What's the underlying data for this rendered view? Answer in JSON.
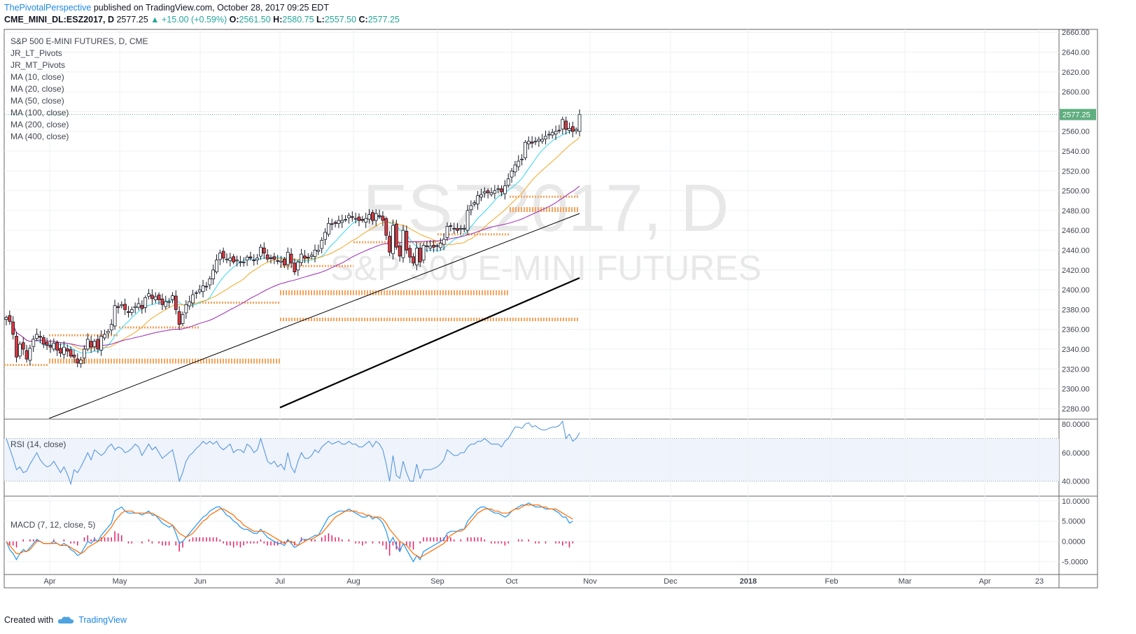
{
  "header": {
    "author": "ThePivotalPerspective",
    "published_text": "published on TradingView.com, October 28, 2017 09:25 EDT",
    "symbol_line": "CME_MINI_DL:ESZ2017, D",
    "last_price": "2577.25",
    "change": "+15.00 (+0.59%)",
    "open_label": "O:",
    "open": "2561.50",
    "high_label": "H:",
    "high": "2580.75",
    "low_label": "L:",
    "low": "2557.50",
    "close_label": "C:",
    "close": "2577.25"
  },
  "legend": {
    "title": "S&P 500 E-MINI FUTURES, D, CME",
    "items": [
      "JR_LT_Pivots",
      "JR_MT_Pivots",
      "MA (10, close)",
      "MA (20, close)",
      "MA (50, close)",
      "MA (100, close)",
      "MA (200, close)",
      "MA (400, close)"
    ]
  },
  "watermark": {
    "symbol": "ESZ2017, D",
    "name": "S&P 500 E-MINI FUTURES"
  },
  "rsi_legend": "RSI (14, close)",
  "macd_legend": "MACD (7, 12, close, 5)",
  "footer": {
    "created_with": "Created with",
    "brand": "TradingView"
  },
  "colors": {
    "up": "#ffffff",
    "down": "#e0383e",
    "wick": "#131722",
    "ma10": "#33d6f1",
    "ma20": "#f5a623",
    "ma50": "#9c27b0",
    "ma100": "#000000",
    "ma200": "#000000",
    "pivot": "#f7a35c",
    "rsi": "#4a90d9",
    "macd": "#2196f3",
    "signal": "#ff6d00",
    "hist": "#e91e63",
    "price_tag": "#5fae7f"
  },
  "chart_data": [
    {
      "type": "candlestick",
      "price_axis": [
        "2660.00",
        "2640.00",
        "2620.00",
        "2600.00",
        "2580.00",
        "2560.00",
        "2540.00",
        "2520.00",
        "2500.00",
        "2480.00",
        "2460.00",
        "2440.00",
        "2420.00",
        "2400.00",
        "2380.00",
        "2360.00",
        "2340.00",
        "2320.00",
        "2300.00",
        "2280.00"
      ],
      "ylim": [
        2270,
        2663
      ],
      "time_axis": [
        "Apr",
        "May",
        "Jun",
        "Jul",
        "Aug",
        "Sep",
        "Oct",
        "Nov",
        "Dec",
        "2018",
        "Feb",
        "Mar",
        "Apr",
        "23"
      ],
      "closes": [
        2372,
        2368,
        2355,
        2332,
        2345,
        2340,
        2330,
        2341,
        2350,
        2355,
        2352,
        2345,
        2344,
        2342,
        2346,
        2339,
        2336,
        2342,
        2338,
        2333,
        2332,
        2326,
        2329,
        2340,
        2350,
        2342,
        2348,
        2340,
        2353,
        2355,
        2358,
        2365,
        2384,
        2382,
        2385,
        2380,
        2377,
        2380,
        2383,
        2386,
        2381,
        2392,
        2396,
        2391,
        2393,
        2390,
        2385,
        2388,
        2388,
        2394,
        2380,
        2365,
        2375,
        2385,
        2388,
        2395,
        2397,
        2400,
        2404,
        2403,
        2411,
        2420,
        2430,
        2437,
        2432,
        2431,
        2432,
        2428,
        2430,
        2428,
        2428,
        2433,
        2432,
        2430,
        2432,
        2443,
        2437,
        2431,
        2432,
        2431,
        2429,
        2429,
        2425,
        2438,
        2427,
        2418,
        2428,
        2436,
        2432,
        2432,
        2435,
        2440,
        2440,
        2450,
        2458,
        2467,
        2466,
        2467,
        2470,
        2470,
        2471,
        2475,
        2473,
        2472,
        2470,
        2470,
        2472,
        2476,
        2470,
        2477,
        2474,
        2470,
        2455,
        2438,
        2465,
        2443,
        2434,
        2460,
        2440,
        2433,
        2427,
        2442,
        2428,
        2445,
        2444,
        2444,
        2443,
        2444,
        2447,
        2451,
        2464,
        2464,
        2462,
        2460,
        2462,
        2462,
        2480,
        2485,
        2488,
        2495,
        2496,
        2499,
        2498,
        2498,
        2500,
        2502,
        2499,
        2505,
        2512,
        2520,
        2526,
        2530,
        2532,
        2549,
        2550,
        2548,
        2550,
        2552,
        2552,
        2555,
        2557,
        2559,
        2560,
        2561,
        2572,
        2562,
        2563,
        2560,
        2562,
        2577
      ],
      "ma10_approx": [
        2375,
        2326
      ],
      "last_price_label": "2577.25"
    },
    {
      "type": "line",
      "name": "RSI (14, close)",
      "axis": [
        "80.0000",
        "60.0000",
        "40.0000"
      ],
      "ylim": [
        30,
        83
      ],
      "band": [
        40,
        70
      ],
      "values": [
        70,
        63,
        56,
        48,
        50,
        46,
        47,
        52,
        56,
        60,
        55,
        52,
        50,
        51,
        54,
        50,
        46,
        50,
        45,
        38,
        48,
        46,
        50,
        55,
        60,
        55,
        62,
        60,
        58,
        60,
        64,
        66,
        62,
        64,
        63,
        60,
        61,
        63,
        66,
        64,
        58,
        62,
        66,
        62,
        64,
        60,
        56,
        58,
        60,
        62,
        52,
        40,
        46,
        54,
        58,
        60,
        63,
        65,
        68,
        66,
        68,
        66,
        68,
        64,
        62,
        64,
        66,
        60,
        62,
        62,
        60,
        66,
        64,
        60,
        62,
        70,
        62,
        54,
        52,
        54,
        50,
        52,
        48,
        60,
        50,
        46,
        54,
        60,
        56,
        56,
        58,
        62,
        60,
        64,
        66,
        68,
        66,
        67,
        68,
        66,
        66,
        68,
        66,
        66,
        64,
        64,
        66,
        68,
        64,
        68,
        66,
        62,
        52,
        40,
        58,
        44,
        42,
        54,
        46,
        40,
        40,
        52,
        42,
        48,
        48,
        48,
        49,
        50,
        52,
        55,
        62,
        60,
        58,
        58,
        60,
        60,
        64,
        66,
        66,
        68,
        68,
        70,
        68,
        66,
        66,
        66,
        64,
        68,
        70,
        74,
        78,
        78,
        77,
        80,
        81,
        78,
        79,
        77,
        76,
        76,
        77,
        78,
        78,
        79,
        82,
        70,
        73,
        68,
        70,
        74
      ]
    },
    {
      "type": "line",
      "name": "MACD (7, 12, close, 5)",
      "axis": [
        "10.0000",
        "5.0000",
        "0.0000",
        "-5.0000"
      ],
      "ylim": [
        -8,
        11
      ],
      "macd": [
        0,
        -2,
        -3,
        -4.5,
        -3,
        -2,
        -2.5,
        -1.5,
        -0.5,
        0.5,
        0,
        -0.5,
        -0.5,
        -0.5,
        0,
        -0.5,
        -1,
        -0.5,
        -1,
        -2,
        -2.5,
        -3.5,
        -3,
        -1.5,
        0,
        -0.5,
        0.5,
        0,
        1.5,
        2.5,
        3.5,
        4.5,
        7.5,
        8,
        8.5,
        7.5,
        7,
        7,
        7,
        7,
        6.5,
        7,
        7.5,
        6.5,
        6.5,
        5.5,
        4.5,
        4,
        3.5,
        4,
        2,
        -0.5,
        0,
        1,
        2,
        3,
        4,
        5,
        6,
        6.5,
        7.5,
        8,
        8.5,
        8.5,
        7.5,
        6.5,
        6,
        5,
        4.5,
        3.5,
        3,
        3,
        2.5,
        2,
        2,
        3,
        2,
        1,
        0.5,
        0,
        -0.5,
        -0.5,
        -1,
        0.5,
        -0.5,
        -1.5,
        -1,
        0.5,
        0.5,
        0.5,
        1,
        1.5,
        1.5,
        3,
        4.5,
        6,
        6.5,
        7,
        7.5,
        7.5,
        7.5,
        8,
        7.5,
        7,
        6.5,
        6,
        6,
        6.5,
        5.5,
        6,
        5.5,
        4.5,
        2.5,
        -0.5,
        1,
        -1,
        -2.5,
        -0.5,
        -2,
        -3.5,
        -5,
        -3.5,
        -4.5,
        -2.5,
        -2,
        -1.5,
        -1,
        -0.5,
        0,
        0.5,
        2,
        2.5,
        2.5,
        2.5,
        3,
        3,
        5,
        6,
        7,
        8,
        8.5,
        8.5,
        8,
        7.5,
        7,
        7,
        6.5,
        6,
        6.5,
        7.5,
        8,
        8.5,
        9,
        9,
        9.5,
        9,
        8.5,
        8.5,
        8.5,
        8,
        8,
        8,
        7.5,
        7,
        6,
        6,
        4.5,
        5
      ],
      "signal": [
        0,
        -1,
        -2,
        -3,
        -3,
        -2.5,
        -2.5,
        -2,
        -1,
        0,
        0,
        -0.5,
        -0.5,
        -0.5,
        -0.5,
        -0.5,
        -1,
        -1,
        -1,
        -1.5,
        -2,
        -2.5,
        -3,
        -2.5,
        -1.5,
        -1,
        -0.5,
        0,
        0.5,
        1.5,
        2.5,
        3.5,
        5,
        6,
        7,
        7.5,
        7.5,
        7.5,
        7,
        7,
        7,
        7,
        7,
        7,
        6.5,
        6,
        5.5,
        5,
        4.5,
        4,
        3,
        2,
        1.5,
        1,
        1.5,
        2,
        3,
        4,
        5,
        5.5,
        6.5,
        7,
        7.5,
        8,
        8,
        7.5,
        7,
        6.5,
        5.5,
        5,
        4,
        3.5,
        3,
        2.5,
        2.5,
        2.5,
        2.5,
        2,
        1.5,
        1,
        0.5,
        0,
        -0.5,
        0,
        0,
        -0.5,
        -1,
        -0.5,
        0,
        0.5,
        0.5,
        1,
        1.5,
        2,
        3,
        4,
        5,
        6,
        6.5,
        7,
        7.5,
        7.5,
        7.5,
        7.5,
        7,
        7,
        6.5,
        6.5,
        6,
        6,
        6,
        5.5,
        4.5,
        3,
        2,
        1,
        0,
        -0.5,
        -1,
        -2,
        -3,
        -3.5,
        -4,
        -3.5,
        -3,
        -2.5,
        -2,
        -1.5,
        -1,
        -0.5,
        0.5,
        1.5,
        2,
        2.5,
        2.5,
        3,
        4,
        5,
        6,
        7,
        7.5,
        8,
        8,
        8,
        7.5,
        7.5,
        7,
        7,
        7,
        7.5,
        8,
        8,
        8.5,
        9,
        9,
        9,
        9,
        9,
        8.5,
        8.5,
        8,
        8,
        8,
        7.5,
        7,
        6.5,
        6,
        5.5
      ]
    }
  ]
}
